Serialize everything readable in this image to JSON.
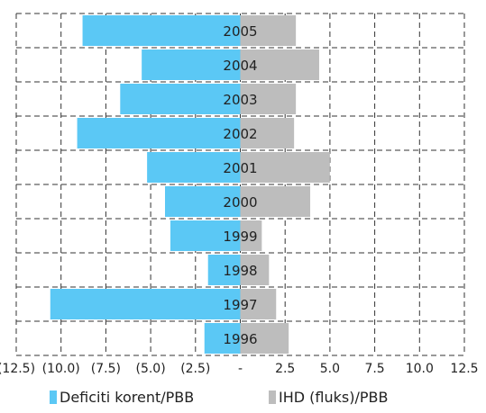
{
  "chart_data": {
    "type": "bar",
    "orientation": "horizontal",
    "categories": [
      "2005",
      "2004",
      "2003",
      "2002",
      "2001",
      "2000",
      "1999",
      "1998",
      "1997",
      "1996"
    ],
    "series": [
      {
        "name": "Deficiti korent/PBB",
        "color": "#5bc8f5",
        "values": [
          -8.8,
          -5.5,
          -6.7,
          -9.1,
          -5.2,
          -4.2,
          -3.9,
          -1.8,
          -10.6,
          -2.0
        ]
      },
      {
        "name": "IHD (fluks)/PBB",
        "color": "#bdbdbd",
        "values": [
          3.1,
          4.4,
          3.1,
          3.0,
          5.0,
          3.9,
          1.2,
          1.6,
          2.0,
          2.7
        ]
      }
    ],
    "xlim": [
      -12.5,
      12.5
    ],
    "x_ticks": [
      -12.5,
      -10,
      -7.5,
      -5,
      -2.5,
      0,
      2.5,
      5,
      7.5,
      10,
      12.5
    ],
    "x_tick_labels": [
      "(12.5)",
      "(10.0)",
      "(7.5)",
      "(5.0)",
      "(2.5)",
      "-",
      "2.5",
      "5.0",
      "7.5",
      "10.0",
      "12.5"
    ],
    "grid": true,
    "legend_position": "bottom",
    "title": "",
    "xlabel": "",
    "ylabel": ""
  }
}
